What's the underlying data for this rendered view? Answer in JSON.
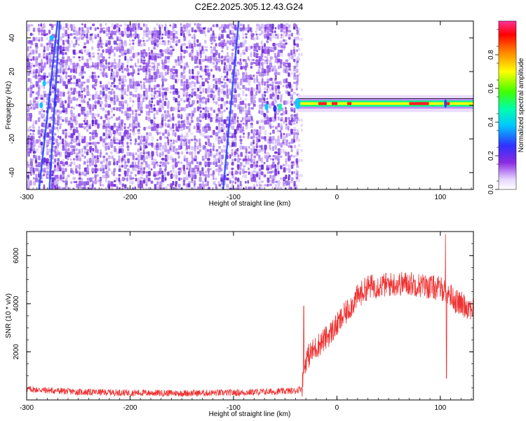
{
  "title": "C2E2.2025.305.12.43.G24",
  "colors": {
    "spectrogram_base": "#7a2fe0",
    "snr_line": "#ee3333",
    "colorbar": [
      "#ffffff",
      "#e8d8ff",
      "#8a2be2",
      "#3030ff",
      "#00c8ff",
      "#00ffaa",
      "#40ff00",
      "#ffff00",
      "#ff8000",
      "#ff0000",
      "#ff3399"
    ]
  },
  "chart_data": [
    {
      "type": "heatmap",
      "xlabel": "Height of straight line (km)",
      "ylabel": "Frequency (Hz)",
      "xlim": [
        -300,
        132
      ],
      "ylim": [
        -50,
        50
      ],
      "xticks": [
        -300,
        -200,
        -100,
        0,
        100
      ],
      "yticks": [
        -40,
        -20,
        0,
        20,
        40
      ],
      "data_region_x": [
        -300,
        -40
      ],
      "carrier_start_x": -38,
      "carrier_frequency": 1,
      "features": [
        {
          "kind": "streak",
          "x_from": -288,
          "x_to": -270,
          "y_from": -50,
          "y_to": 50
        },
        {
          "kind": "streak",
          "x_from": -278,
          "x_to": -268,
          "y_from": -50,
          "y_to": 50
        },
        {
          "kind": "streak",
          "x_from": -110,
          "x_to": -95,
          "y_from": -50,
          "y_to": 50
        }
      ],
      "colorbar": {
        "label": "Normalized spectral amplitude",
        "range": [
          0,
          1
        ],
        "ticks": [
          "0.0",
          "0.2",
          "0.4",
          "0.6",
          "0.8"
        ]
      }
    },
    {
      "type": "line",
      "xlabel": "Height of straight line (km)",
      "ylabel": "SNR (10 * v/v)",
      "xlim": [
        -300,
        132
      ],
      "ylim": [
        0,
        7000
      ],
      "xticks": [
        -300,
        -200,
        -100,
        0,
        100
      ],
      "yticks": [
        2000,
        4000,
        6000
      ],
      "envelope": [
        [
          -300,
          450
        ],
        [
          -250,
          330
        ],
        [
          -200,
          300
        ],
        [
          -150,
          280
        ],
        [
          -100,
          300
        ],
        [
          -60,
          350
        ],
        [
          -40,
          380
        ],
        [
          -34,
          500
        ],
        [
          -30,
          1700
        ],
        [
          -20,
          2200
        ],
        [
          -10,
          2600
        ],
        [
          0,
          3100
        ],
        [
          10,
          3700
        ],
        [
          20,
          4300
        ],
        [
          30,
          4700
        ],
        [
          50,
          4800
        ],
        [
          70,
          4850
        ],
        [
          90,
          4700
        ],
        [
          105,
          4600
        ],
        [
          115,
          4100
        ],
        [
          125,
          3900
        ],
        [
          132,
          3800
        ]
      ],
      "spikes": [
        {
          "x": -32,
          "y": 3900
        },
        {
          "x": 105,
          "y": 6900
        },
        {
          "x": 106,
          "y": 900
        }
      ]
    }
  ]
}
